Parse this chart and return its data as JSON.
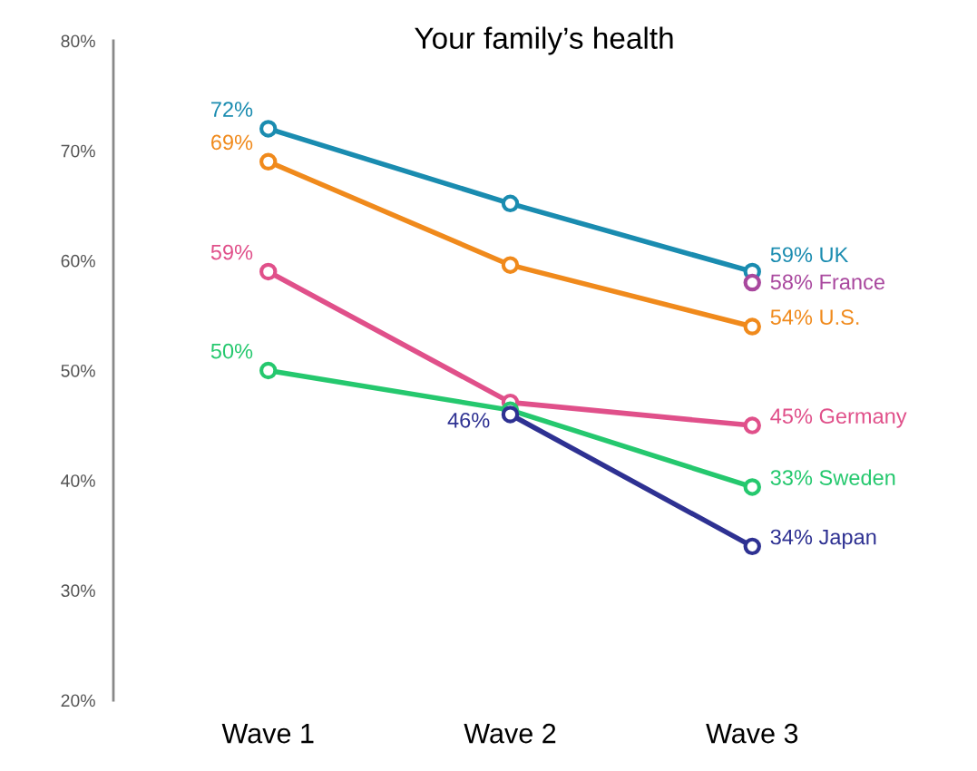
{
  "chart_data": {
    "type": "line",
    "title": "Your family’s health",
    "categories": [
      "Wave 1",
      "Wave 2",
      "Wave 3"
    ],
    "ylim": [
      20,
      80
    ],
    "yticks": [
      {
        "value": 20,
        "label": "20%"
      },
      {
        "value": 30,
        "label": "30%"
      },
      {
        "value": 40,
        "label": "40%"
      },
      {
        "value": 50,
        "label": "50%"
      },
      {
        "value": 60,
        "label": "60%"
      },
      {
        "value": 70,
        "label": "70%"
      },
      {
        "value": 80,
        "label": "80%"
      }
    ],
    "annotations": [
      {
        "text": "33% Sweden",
        "x": "Wave 3",
        "y": 39.4
      }
    ],
    "grid": false,
    "legend": false,
    "marker": "circle",
    "line_style": "solid",
    "series": [
      {
        "name": "UK",
        "color": "#1a8cb0",
        "values": [
          72,
          65.2,
          59
        ],
        "value_labels": [
          "72%",
          null,
          "59%"
        ]
      },
      {
        "name": "France",
        "color": "#a9489e",
        "values": [
          null,
          null,
          58
        ],
        "value_labels": [
          null,
          null,
          "58%"
        ]
      },
      {
        "name": "U.S.",
        "color": "#f08a1c",
        "values": [
          69,
          59.6,
          54
        ],
        "value_labels": [
          "69%",
          null,
          "54%"
        ]
      },
      {
        "name": "Germany",
        "color": "#e0508a",
        "values": [
          59,
          47.1,
          45
        ],
        "value_labels": [
          "59%",
          null,
          "45%"
        ]
      },
      {
        "color": "#25c86e",
        "values": [
          50,
          46.4,
          39.4
        ],
        "value_labels": [
          "50%",
          null,
          null
        ]
      },
      {
        "name": "Japan",
        "color": "#2e3192",
        "values": [
          null,
          46,
          34
        ],
        "value_labels": [
          null,
          "46%",
          "34%"
        ]
      }
    ]
  }
}
